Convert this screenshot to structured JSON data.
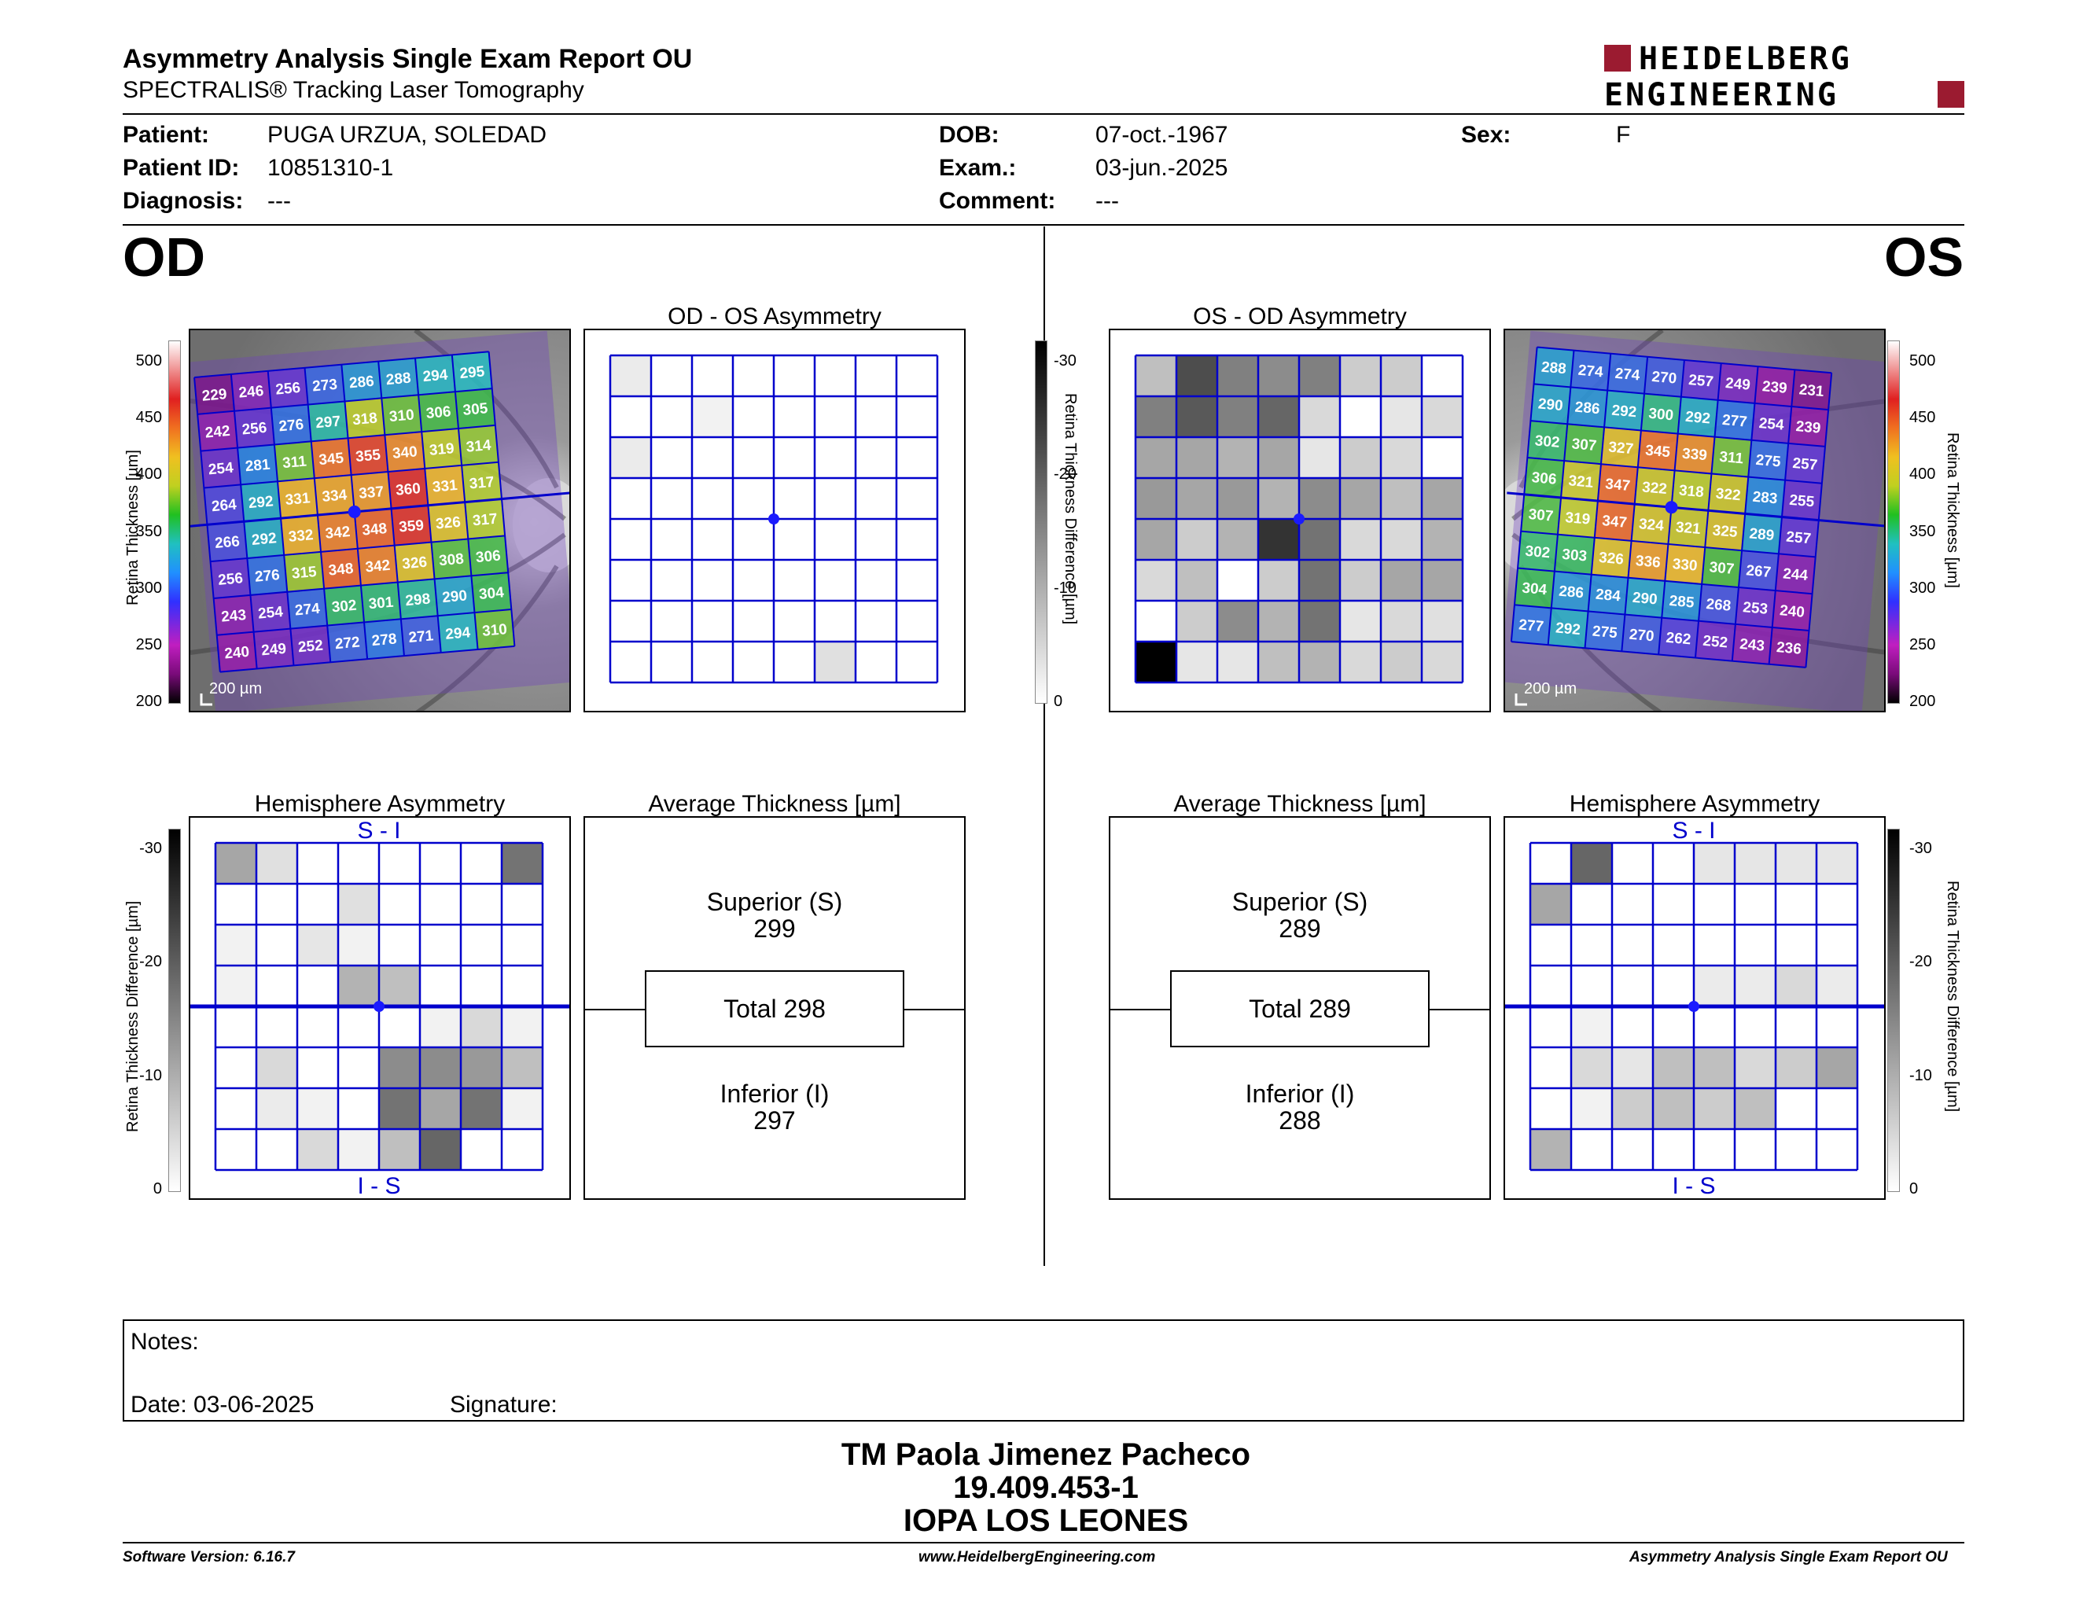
{
  "header": {
    "title": "Asymmetry Analysis Single Exam Report OU",
    "subtitle": "SPECTRALIS® Tracking Laser Tomography",
    "logo_line1": "HEIDELBERG",
    "logo_line2": "ENGINEERING",
    "brand_color": "#9b1b30"
  },
  "patient": {
    "patient_label": "Patient:",
    "patient_value": "PUGA URZUA, SOLEDAD",
    "id_label": "Patient ID:",
    "id_value": "10851310-1",
    "diagnosis_label": "Diagnosis:",
    "diagnosis_value": "---",
    "dob_label": "DOB:",
    "dob_value": "07-oct.-1967",
    "exam_label": "Exam.:",
    "exam_value": "03-jun.-2025",
    "comment_label": "Comment:",
    "comment_value": "---",
    "sex_label": "Sex:",
    "sex_value": "F"
  },
  "eyes": {
    "left": "OD",
    "right": "OS"
  },
  "titles": {
    "od_asym": "OD - OS Asymmetry",
    "os_asym": "OS - OD Asymmetry",
    "hemi": "Hemisphere Asymmetry",
    "avg": "Average Thickness [µm]",
    "si": "S - I",
    "is": "I - S",
    "scale_bar": "200 µm"
  },
  "axis_labels": {
    "retina_thickness": "Retina  Thickness [µm]",
    "retina_thickness_right": "Retina  Thickness [µm]",
    "diff": "Retina Thickness Difference [µm]",
    "heat_ticks": [
      "500",
      "450",
      "400",
      "350",
      "300",
      "250",
      "200"
    ],
    "gray_ticks": [
      "-30",
      "-20",
      "-10",
      "0"
    ]
  },
  "thickness_od": [
    [
      229,
      246,
      256,
      273,
      286,
      288,
      294,
      295
    ],
    [
      242,
      256,
      276,
      297,
      318,
      310,
      306,
      305
    ],
    [
      254,
      281,
      311,
      345,
      355,
      340,
      319,
      314
    ],
    [
      264,
      292,
      331,
      334,
      337,
      360,
      331,
      317
    ],
    [
      266,
      292,
      332,
      342,
      348,
      359,
      326,
      317
    ],
    [
      256,
      276,
      315,
      348,
      342,
      326,
      308,
      306
    ],
    [
      243,
      254,
      274,
      302,
      301,
      298,
      290,
      304
    ],
    [
      240,
      249,
      252,
      272,
      278,
      271,
      294,
      310
    ]
  ],
  "thickness_os": [
    [
      288,
      274,
      274,
      270,
      257,
      249,
      239,
      231
    ],
    [
      290,
      286,
      292,
      300,
      292,
      277,
      254,
      239
    ],
    [
      302,
      307,
      327,
      345,
      339,
      311,
      275,
      257
    ],
    [
      306,
      321,
      347,
      322,
      318,
      322,
      283,
      255
    ],
    [
      307,
      319,
      347,
      324,
      321,
      325,
      289,
      257
    ],
    [
      302,
      303,
      326,
      336,
      330,
      307,
      267,
      244
    ],
    [
      304,
      286,
      284,
      290,
      285,
      268,
      253,
      240
    ],
    [
      277,
      292,
      275,
      270,
      262,
      252,
      243,
      236
    ]
  ],
  "asym_od_gray": [
    [
      0.08,
      0,
      0,
      0,
      0,
      0,
      0,
      0
    ],
    [
      0,
      0,
      0.05,
      0,
      0,
      0,
      0,
      0
    ],
    [
      0.08,
      0,
      0,
      0,
      0,
      0,
      0,
      0
    ],
    [
      0,
      0,
      0,
      0,
      0,
      0,
      0,
      0
    ],
    [
      0,
      0,
      0,
      0,
      0,
      0,
      0,
      0
    ],
    [
      0,
      0,
      0,
      0,
      0,
      0,
      0,
      0
    ],
    [
      0,
      0,
      0,
      0,
      0,
      0,
      0,
      0
    ],
    [
      0,
      0,
      0,
      0,
      0,
      0.12,
      0,
      0
    ]
  ],
  "asym_os_gray": [
    [
      0.25,
      0.7,
      0.5,
      0.45,
      0.5,
      0.2,
      0.2,
      0
    ],
    [
      0.5,
      0.65,
      0.5,
      0.6,
      0.15,
      0,
      0.1,
      0.15
    ],
    [
      0.35,
      0.35,
      0.3,
      0.35,
      0.1,
      0.2,
      0.15,
      0
    ],
    [
      0.4,
      0.35,
      0.4,
      0.3,
      0.45,
      0.35,
      0.25,
      0.35
    ],
    [
      0.35,
      0.2,
      0.3,
      0.8,
      0.55,
      0.15,
      0.15,
      0.3
    ],
    [
      0.15,
      0.25,
      0,
      0.2,
      0.55,
      0.2,
      0.35,
      0.35
    ],
    [
      0,
      0.2,
      0.45,
      0.3,
      0.55,
      0.1,
      0.15,
      0.12
    ],
    [
      1.0,
      0.1,
      0.1,
      0.25,
      0.3,
      0.15,
      0.2,
      0.15
    ]
  ],
  "hemi_od_gray": [
    [
      0.35,
      0.12,
      0,
      0,
      0,
      0,
      0,
      0.55
    ],
    [
      0,
      0,
      0,
      0.12,
      0,
      0,
      0,
      0
    ],
    [
      0.05,
      0,
      0.1,
      0.05,
      0,
      0,
      0,
      0
    ],
    [
      0.05,
      0,
      0,
      0.3,
      0.25,
      0,
      0,
      0
    ],
    [
      0,
      0,
      0,
      0,
      0,
      0.05,
      0.15,
      0.05
    ],
    [
      0,
      0.15,
      0,
      0,
      0.45,
      0.45,
      0.4,
      0.25
    ],
    [
      0,
      0.08,
      0.05,
      0,
      0.55,
      0.35,
      0.55,
      0.05
    ],
    [
      0,
      0,
      0.15,
      0.05,
      0.25,
      0.6,
      0,
      0
    ]
  ],
  "hemi_os_gray": [
    [
      0,
      0.6,
      0,
      0,
      0.1,
      0.1,
      0.1,
      0.1
    ],
    [
      0.35,
      0,
      0,
      0,
      0,
      0,
      0,
      0
    ],
    [
      0,
      0,
      0,
      0,
      0,
      0,
      0,
      0
    ],
    [
      0,
      0,
      0,
      0,
      0.08,
      0.08,
      0.15,
      0.08
    ],
    [
      0,
      0.05,
      0,
      0,
      0,
      0,
      0,
      0
    ],
    [
      0,
      0.15,
      0.1,
      0.25,
      0.25,
      0.15,
      0.2,
      0.35
    ],
    [
      0,
      0.05,
      0.2,
      0.25,
      0.2,
      0.25,
      0,
      0
    ],
    [
      0.3,
      0,
      0,
      0,
      0,
      0,
      0,
      0
    ]
  ],
  "avg_od": {
    "sup_label": "Superior (S)",
    "sup_value": "299",
    "total": "Total 298",
    "inf_label": "Inferior (I)",
    "inf_value": "297"
  },
  "avg_os": {
    "sup_label": "Superior (S)",
    "sup_value": "289",
    "total": "Total 289",
    "inf_label": "Inferior (I)",
    "inf_value": "288"
  },
  "notes": {
    "label": "Notes:",
    "date": "Date: 03-06-2025",
    "signature": "Signature:"
  },
  "signature_block": {
    "name": "TM Paola Jimenez Pacheco",
    "rut": "19.409.453-1",
    "clinic": "IOPA LOS LEONES"
  },
  "footer": {
    "software": "Software Version: 6.16.7",
    "url": "www.HeidelbergEngineering.com",
    "report": "Asymmetry Analysis Single Exam Report OU"
  },
  "colors": {
    "grid_blue": "#0000cc",
    "fovea_blue": "#1a1aff"
  }
}
